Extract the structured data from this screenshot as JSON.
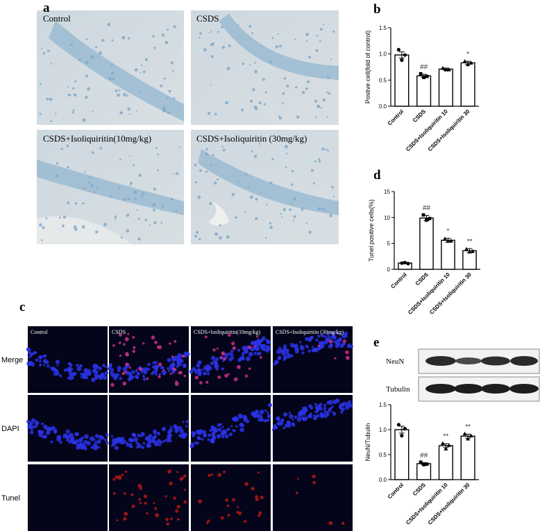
{
  "panel_labels": [
    "a",
    "b",
    "c",
    "d",
    "e"
  ],
  "micrograph_labels": [
    "Control",
    "CSDS",
    "CSDS+Isoliquiritin(10mg/kg)",
    "CSDS+Isoliquiritin (30mg/kg)"
  ],
  "tunel_columns": [
    "Control",
    "CSDS",
    "CSDS+Isoliquiritin(10mg/kg)",
    "CSDS+Isoliquiritin (30mg/kg)"
  ],
  "tunel_rows": [
    "Merge",
    "DAPI",
    "Tunel"
  ],
  "blot_labels": [
    "NeuN",
    "Tubulin"
  ],
  "chart_data": [
    {
      "type": "bar",
      "ylabel": "Postive cell(fold of control)",
      "categories": [
        "Control",
        "CSDS",
        "CSDS+Isoliquiritin 10",
        "CSDS+Isoliquiritin 30"
      ],
      "values": [
        0.98,
        0.58,
        0.71,
        0.83
      ],
      "errors": [
        0.06,
        0.03,
        0.02,
        0.03
      ],
      "points": [
        [
          1.08,
          0.88,
          0.98
        ],
        [
          0.62,
          0.55,
          0.57
        ],
        [
          0.73,
          0.7,
          0.7
        ],
        [
          0.86,
          0.8,
          0.83
        ]
      ],
      "annotations": [
        null,
        "##",
        null,
        "*"
      ],
      "ylim": [
        0,
        1.5
      ],
      "yticks": [
        {
          "value": 0,
          "label": "0.0"
        },
        0.5,
        {
          "value": 1,
          "label": "1.0"
        },
        1.5
      ]
    },
    {
      "type": "bar",
      "ylabel": "Tunel positive cells(%)",
      "categories": [
        "Control",
        "CSDS",
        "CSDS+Isoliquiritin 10",
        "CSDS+Isoliquiritin 30"
      ],
      "values": [
        1.2,
        9.9,
        5.6,
        3.6
      ],
      "errors": [
        0.1,
        0.5,
        0.4,
        0.4
      ],
      "points": [
        [
          1.2,
          1.3,
          1.1
        ],
        [
          10.5,
          9.5,
          9.8
        ],
        [
          5.9,
          5.5,
          5.5
        ],
        [
          3.9,
          3.4,
          3.5
        ]
      ],
      "annotations": [
        null,
        "##",
        "*",
        "**"
      ],
      "ylim": [
        0,
        15
      ],
      "yticks": [
        0,
        5,
        10,
        15
      ]
    },
    {
      "type": "bar",
      "ylabel": "NeuN/Tubulin",
      "categories": [
        "Control",
        "CSDS",
        "CSDS+Isoliquiritin 10",
        "CSDS+Isoliquiritin 30"
      ],
      "values": [
        1.0,
        0.32,
        0.68,
        0.87
      ],
      "errors": [
        0.07,
        0.02,
        0.04,
        0.04
      ],
      "points": [
        [
          1.1,
          0.88,
          1.02
        ],
        [
          0.35,
          0.3,
          0.31
        ],
        [
          0.73,
          0.62,
          0.69
        ],
        [
          0.92,
          0.82,
          0.88
        ]
      ],
      "annotations": [
        null,
        "##",
        "**",
        "**"
      ],
      "ylim": [
        0,
        1.5
      ],
      "yticks": [
        {
          "value": 0,
          "label": "0.0"
        },
        0.5,
        {
          "value": 1,
          "label": "1.0"
        },
        1.5
      ]
    }
  ]
}
